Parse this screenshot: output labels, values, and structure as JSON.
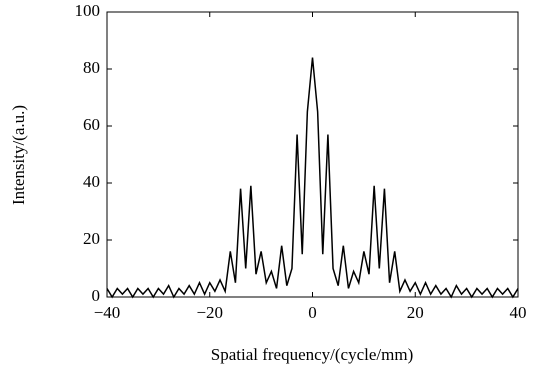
{
  "chart_data": {
    "type": "line",
    "xlabel": "Spatial frequency/(cycle/mm)",
    "ylabel": "Intensity/(a.u.)",
    "x": [
      -40,
      -39,
      -38,
      -37,
      -36,
      -35,
      -34,
      -33,
      -32,
      -31,
      -30,
      -29,
      -28,
      -27,
      -26,
      -25,
      -24,
      -23,
      -22,
      -21,
      -20,
      -19,
      -18,
      -17,
      -16,
      -15,
      -14,
      -13,
      -12,
      -11,
      -10,
      -9,
      -8,
      -7,
      -6,
      -5,
      -4,
      -3,
      -2,
      -1,
      0,
      1,
      2,
      3,
      4,
      5,
      6,
      7,
      8,
      9,
      10,
      11,
      12,
      13,
      14,
      15,
      16,
      17,
      18,
      19,
      20,
      21,
      22,
      23,
      24,
      25,
      26,
      27,
      28,
      29,
      30,
      31,
      32,
      33,
      34,
      35,
      36,
      37,
      38,
      39,
      40
    ],
    "values": [
      3,
      0,
      3,
      1,
      3,
      0,
      3,
      1,
      3,
      0,
      3,
      1,
      4,
      0,
      3,
      1,
      4,
      1,
      5,
      1,
      5,
      2,
      6,
      2,
      16,
      5,
      38,
      10,
      39,
      8,
      16,
      5,
      9,
      3,
      18,
      4,
      10,
      57,
      15,
      65,
      84,
      65,
      15,
      57,
      10,
      4,
      18,
      3,
      9,
      5,
      16,
      8,
      39,
      10,
      38,
      5,
      16,
      2,
      6,
      2,
      5,
      1,
      5,
      1,
      4,
      1,
      3,
      0,
      4,
      1,
      3,
      0,
      3,
      1,
      3,
      0,
      3,
      1,
      3,
      0,
      3
    ],
    "color": "#000000",
    "xlim": [
      -40,
      40
    ],
    "ylim": [
      0,
      100
    ],
    "xticks": [
      {
        "value": -40,
        "label": "−40"
      },
      {
        "value": -20,
        "label": "−20"
      },
      0,
      20,
      40
    ],
    "yticks": [
      0,
      20,
      40,
      60,
      80,
      100
    ]
  }
}
